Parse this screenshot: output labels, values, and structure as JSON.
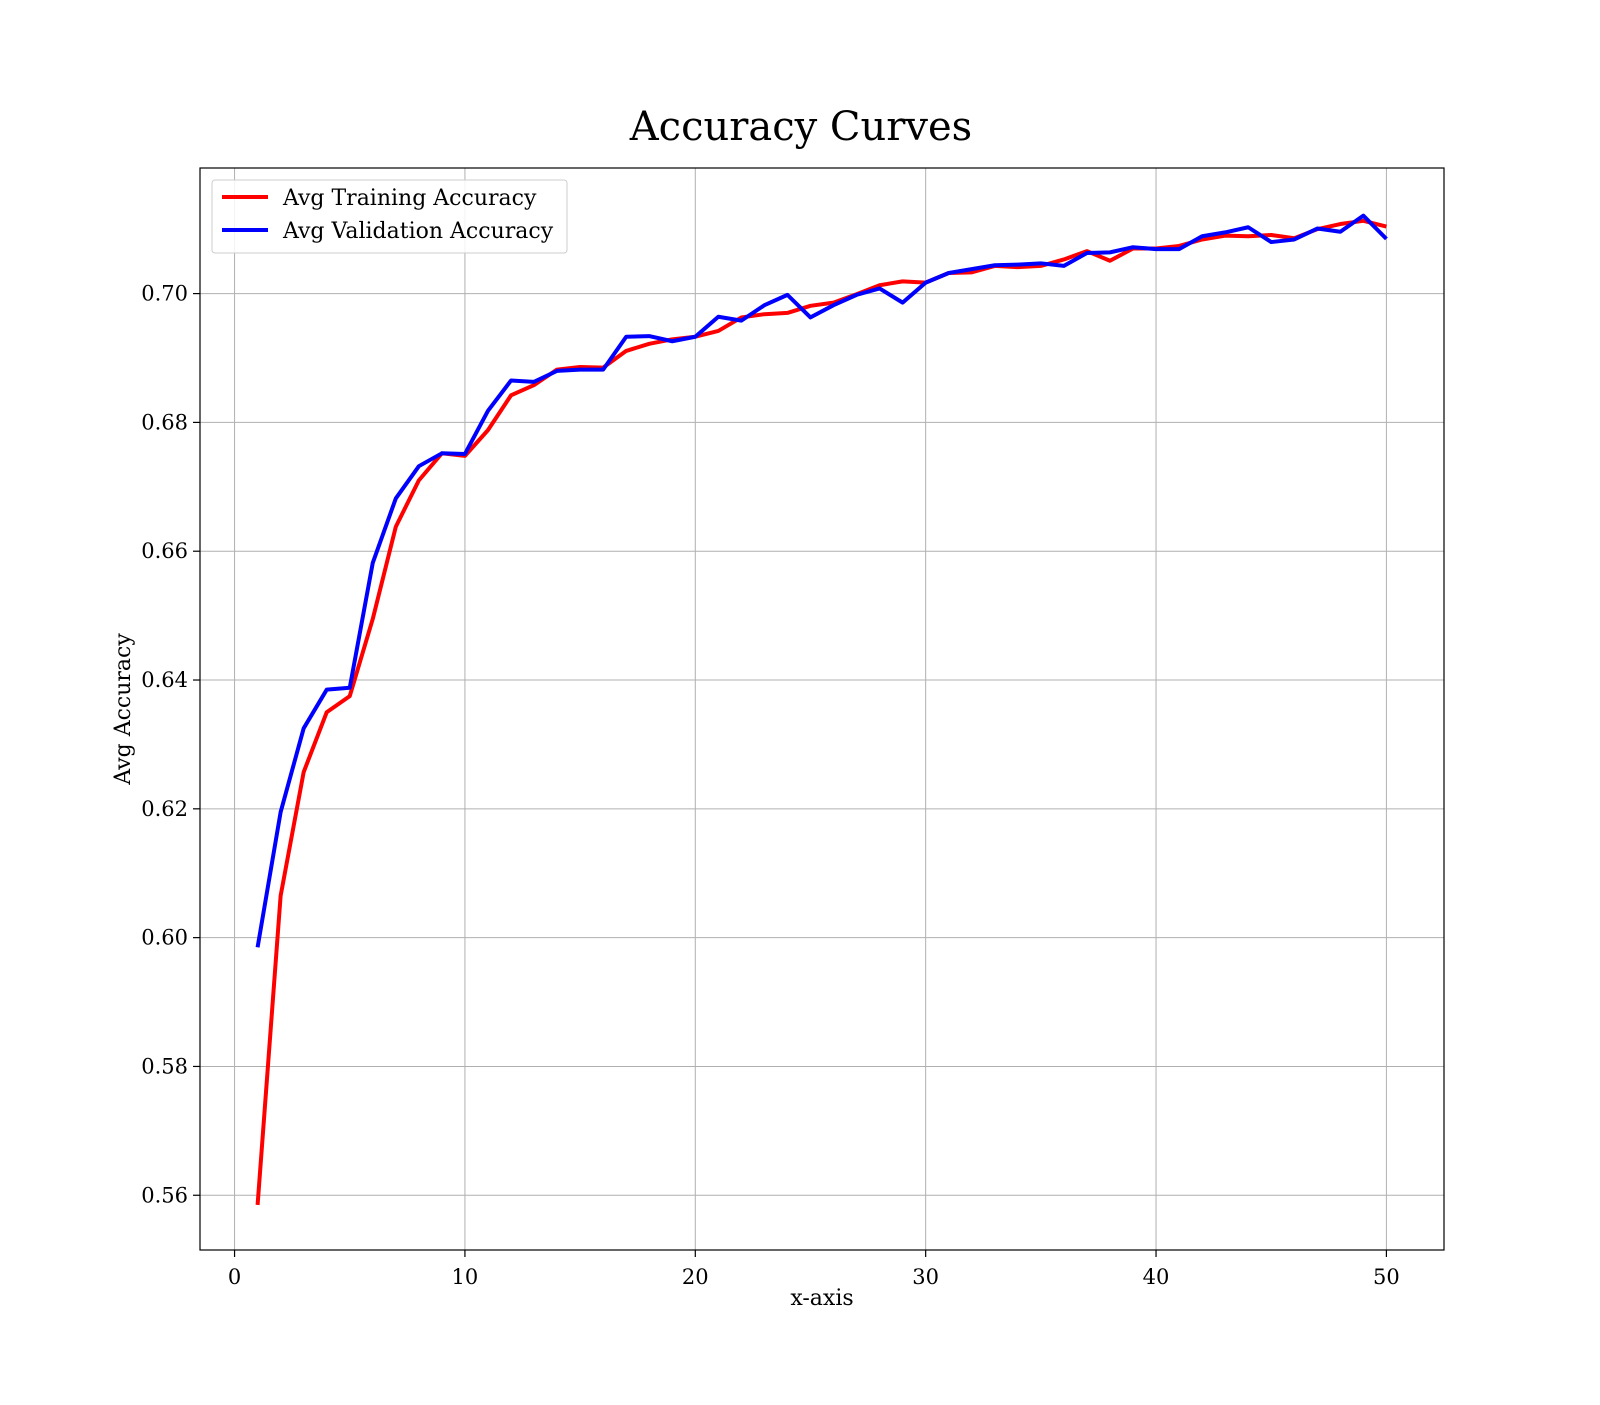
{
  "chart_data": {
    "type": "line",
    "title": "Accuracy Curves",
    "xlabel": "x-axis",
    "ylabel": "Avg Accuracy",
    "xlim": [
      -1.5,
      52.5
    ],
    "ylim": [
      0.5515,
      0.7195
    ],
    "xticks": [
      0,
      10,
      20,
      30,
      40,
      50
    ],
    "xtick_labels": [
      "0",
      "10",
      "20",
      "30",
      "40",
      "50"
    ],
    "yticks": [
      0.56,
      0.58,
      0.6,
      0.62,
      0.64,
      0.66,
      0.68,
      0.7
    ],
    "ytick_labels": [
      "0.56",
      "0.58",
      "0.60",
      "0.62",
      "0.64",
      "0.66",
      "0.68",
      "0.70"
    ],
    "grid": true,
    "legend_position": "upper-left",
    "x": [
      1,
      2,
      3,
      4,
      5,
      6,
      7,
      8,
      9,
      10,
      11,
      12,
      13,
      14,
      15,
      16,
      17,
      18,
      19,
      20,
      21,
      22,
      23,
      24,
      25,
      26,
      27,
      28,
      29,
      30,
      31,
      32,
      33,
      34,
      35,
      36,
      37,
      38,
      39,
      40,
      41,
      42,
      43,
      44,
      45,
      46,
      47,
      48,
      49,
      50
    ],
    "series": [
      {
        "name": "Avg Training Accuracy",
        "color": "#ff0000",
        "values": [
          0.5585,
          0.6065,
          0.6257,
          0.635,
          0.6375,
          0.6495,
          0.6638,
          0.671,
          0.6752,
          0.6748,
          0.6788,
          0.6842,
          0.6858,
          0.6882,
          0.6886,
          0.6885,
          0.6911,
          0.6922,
          0.6929,
          0.6933,
          0.6942,
          0.6963,
          0.6968,
          0.697,
          0.6981,
          0.6986,
          0.6999,
          0.7013,
          0.7019,
          0.7017,
          0.7032,
          0.7033,
          0.7043,
          0.7041,
          0.7043,
          0.7053,
          0.7066,
          0.7051,
          0.707,
          0.707,
          0.7074,
          0.7084,
          0.709,
          0.7089,
          0.7091,
          0.7086,
          0.71,
          0.7108,
          0.7113,
          0.7104
        ]
      },
      {
        "name": "Avg Validation Accuracy",
        "color": "#0000ff",
        "values": [
          0.5985,
          0.6195,
          0.6325,
          0.6385,
          0.6388,
          0.6582,
          0.6682,
          0.6732,
          0.6752,
          0.6751,
          0.6818,
          0.6865,
          0.6863,
          0.688,
          0.6882,
          0.6882,
          0.6933,
          0.6934,
          0.6926,
          0.6933,
          0.6964,
          0.6958,
          0.6982,
          0.6998,
          0.6963,
          0.6982,
          0.6998,
          0.7008,
          0.6986,
          0.7017,
          0.7032,
          0.7038,
          0.7044,
          0.7045,
          0.7047,
          0.7043,
          0.7063,
          0.7064,
          0.7072,
          0.7069,
          0.7069,
          0.7089,
          0.7095,
          0.7103,
          0.708,
          0.7084,
          0.7101,
          0.7096,
          0.7121,
          0.7085
        ]
      }
    ]
  }
}
